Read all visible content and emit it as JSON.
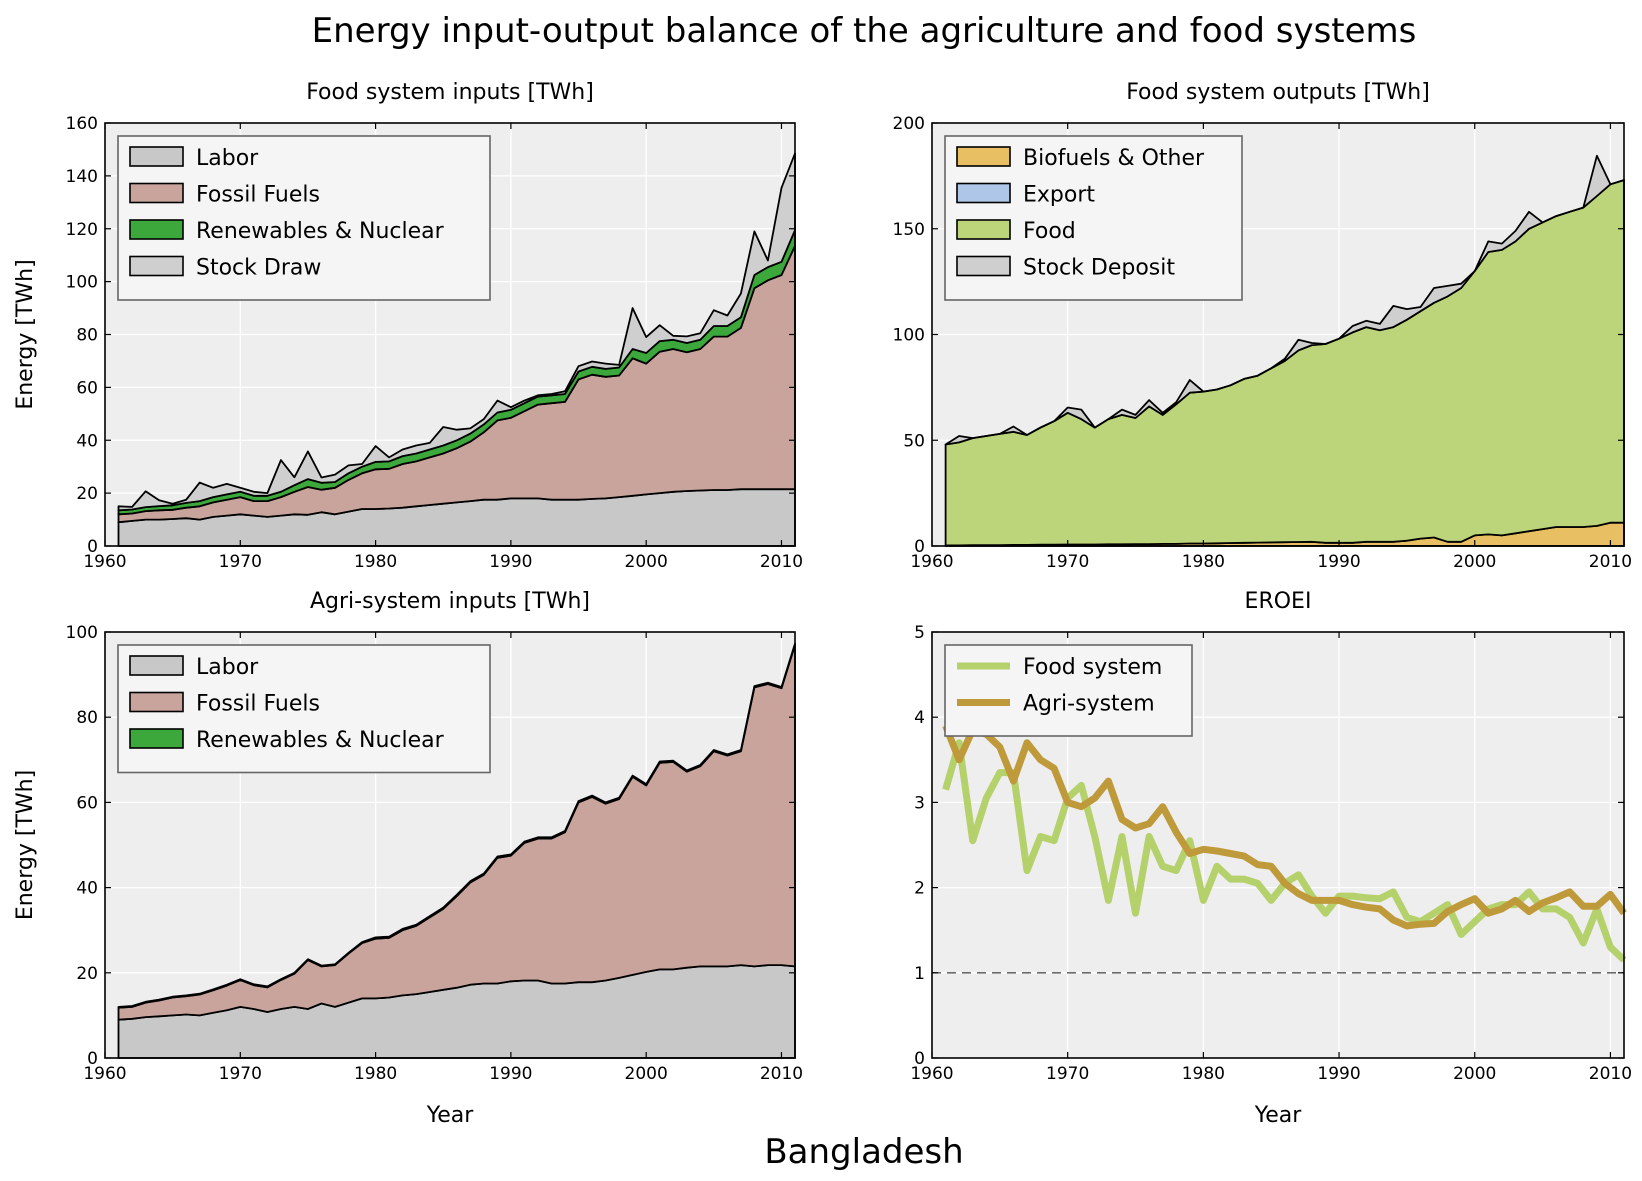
{
  "figure": {
    "title": "Energy input-output balance of the agriculture and food systems",
    "footer": "Bangladesh"
  },
  "colors": {
    "labor": "#c8c8c8",
    "fossil": "#c8a49c",
    "renew": "#3ca83c",
    "stock": "#cfcfcf",
    "biofuel": "#e8bf62",
    "export": "#aec7e8",
    "food": "#bcd47a",
    "eroei_food": "#b5d16b",
    "eroei_agri": "#bf9a3a",
    "bg": "#eeeeee"
  },
  "chart_data": [
    {
      "id": "food-inputs",
      "type": "area",
      "title": "Food system inputs [TWh]",
      "ylabel": "Energy [TWh]",
      "xlabel": "",
      "xlim": [
        1960,
        2011
      ],
      "ylim": [
        0,
        160
      ],
      "xticks": [
        1960,
        1970,
        1980,
        1990,
        2000,
        2010
      ],
      "yticks": [
        0,
        20,
        40,
        60,
        80,
        100,
        120,
        140,
        160
      ],
      "legend": "top-left",
      "grid": true,
      "x": [
        1961,
        1962,
        1963,
        1964,
        1965,
        1966,
        1967,
        1968,
        1969,
        1970,
        1971,
        1972,
        1973,
        1974,
        1975,
        1976,
        1977,
        1978,
        1979,
        1980,
        1981,
        1982,
        1983,
        1984,
        1985,
        1986,
        1987,
        1988,
        1989,
        1990,
        1991,
        1992,
        1993,
        1994,
        1995,
        1996,
        1997,
        1998,
        1999,
        2000,
        2001,
        2002,
        2003,
        2004,
        2005,
        2006,
        2007,
        2008,
        2009,
        2010,
        2011
      ],
      "series": [
        {
          "name": "Labor",
          "color": "labor",
          "values": [
            9,
            9.5,
            10,
            10,
            10.2,
            10.5,
            10,
            11,
            11.5,
            12,
            11.5,
            11,
            11.5,
            12,
            11.8,
            12.8,
            12,
            13,
            14,
            14,
            14.2,
            14.5,
            15,
            15.5,
            16,
            16.5,
            17,
            17.5,
            17.5,
            18,
            18,
            18,
            17.5,
            17.5,
            17.5,
            17.8,
            18,
            18.5,
            19,
            19.5,
            20,
            20.5,
            20.8,
            21,
            21.2,
            21.2,
            21.5,
            21.5,
            21.5,
            21.5,
            21.5
          ]
        },
        {
          "name": "Fossil Fuels",
          "color": "fossil",
          "values": [
            3,
            2.8,
            3.2,
            3.5,
            3.5,
            4,
            5,
            5.5,
            6,
            6.5,
            5.5,
            6,
            7,
            8.5,
            10.5,
            8.5,
            10,
            12,
            13.5,
            15,
            15,
            16.5,
            17,
            18,
            19,
            20.5,
            22.5,
            25.5,
            30,
            30.5,
            33,
            35.5,
            36.5,
            37,
            45.5,
            47,
            46,
            46,
            52,
            49.5,
            53.5,
            54,
            52.5,
            53.5,
            58,
            58,
            61,
            76,
            79,
            81,
            92
          ]
        },
        {
          "name": "Renewables & Nuclear",
          "color": "renew",
          "values": [
            1.5,
            1.5,
            1.5,
            1.6,
            1.7,
            1.8,
            2,
            2,
            2,
            2,
            2,
            2,
            2,
            2.5,
            3,
            2.6,
            2.2,
            2.5,
            2.5,
            2.8,
            2.8,
            3,
            3,
            3,
            3,
            3,
            3,
            3,
            3,
            3,
            3,
            3,
            3,
            3,
            3,
            3,
            3,
            3,
            3.5,
            4,
            4,
            3.5,
            3.5,
            3.5,
            4,
            4,
            4,
            5,
            5,
            5,
            6
          ]
        },
        {
          "name": "Stock Draw",
          "color": "stock",
          "values": [
            1.5,
            1,
            6,
            2.2,
            0.6,
            1.2,
            7,
            3.5,
            4,
            1.5,
            1.5,
            1,
            12,
            3,
            10.5,
            2,
            2.8,
            3,
            1,
            6,
            1.5,
            2.5,
            3,
            2.5,
            7,
            4,
            2,
            2,
            4.5,
            1,
            1,
            0.5,
            0.5,
            1,
            2,
            2,
            2,
            1,
            15.5,
            6,
            6,
            1.5,
            2.5,
            2.5,
            6,
            4,
            9,
            16.5,
            2.5,
            28,
            29
          ]
        }
      ]
    },
    {
      "id": "food-outputs",
      "type": "area",
      "title": "Food system outputs [TWh]",
      "ylabel": "",
      "xlabel": "",
      "xlim": [
        1960,
        2011
      ],
      "ylim": [
        0,
        200
      ],
      "xticks": [
        1960,
        1970,
        1980,
        1990,
        2000,
        2010
      ],
      "yticks": [
        0,
        50,
        100,
        150,
        200
      ],
      "legend": "top-left",
      "grid": true,
      "x": [
        1961,
        1962,
        1963,
        1964,
        1965,
        1966,
        1967,
        1968,
        1969,
        1970,
        1971,
        1972,
        1973,
        1974,
        1975,
        1976,
        1977,
        1978,
        1979,
        1980,
        1981,
        1982,
        1983,
        1984,
        1985,
        1986,
        1987,
        1988,
        1989,
        1990,
        1991,
        1992,
        1993,
        1994,
        1995,
        1996,
        1997,
        1998,
        1999,
        2000,
        2001,
        2002,
        2003,
        2004,
        2005,
        2006,
        2007,
        2008,
        2009,
        2010,
        2011
      ],
      "series": [
        {
          "name": "Biofuels & Other",
          "color": "biofuel",
          "values": [
            0.3,
            0.3,
            0.4,
            0.4,
            0.4,
            0.5,
            0.5,
            0.6,
            0.6,
            0.7,
            0.7,
            0.7,
            0.8,
            0.8,
            0.9,
            0.9,
            1,
            1,
            1.2,
            1.2,
            1.3,
            1.4,
            1.5,
            1.6,
            1.7,
            1.8,
            1.9,
            2,
            1.5,
            1.5,
            1.5,
            2,
            2,
            2,
            2.5,
            3.5,
            4,
            2,
            2,
            5,
            5.5,
            5,
            6,
            7,
            8,
            9,
            9,
            9,
            9.5,
            11,
            11
          ]
        },
        {
          "name": "Export",
          "color": "export",
          "values": [
            0,
            0,
            0,
            0,
            0,
            0,
            0,
            0,
            0,
            0,
            0,
            0,
            0,
            0,
            0,
            0,
            0,
            0,
            0,
            0,
            0,
            0,
            0,
            0,
            0,
            0,
            0,
            0,
            0,
            0,
            0,
            0,
            0,
            0,
            0,
            0,
            0,
            0,
            0,
            0,
            0,
            0,
            0,
            0,
            0,
            0,
            0,
            0,
            0,
            0,
            0
          ]
        },
        {
          "name": "Food",
          "color": "food",
          "values": [
            47.7,
            48.7,
            50.6,
            51.6,
            52.6,
            53.5,
            52,
            55.4,
            58.4,
            62.3,
            59.3,
            55.3,
            59.2,
            61.2,
            59.6,
            65.1,
            61,
            66,
            71.3,
            71.8,
            72.7,
            74.6,
            77.5,
            78.9,
            82.3,
            85.7,
            90.6,
            93,
            94,
            96.5,
            99.5,
            101.5,
            100,
            101.5,
            104.5,
            107.5,
            111,
            116,
            120,
            125,
            133.5,
            135,
            138,
            143,
            145,
            147,
            149,
            151,
            156,
            160,
            162
          ]
        },
        {
          "name": "Stock Deposit",
          "color": "stock",
          "values": [
            0,
            3,
            0,
            0,
            0,
            2.5,
            0,
            0,
            0,
            2.5,
            4.5,
            0,
            0,
            2.5,
            1.5,
            3,
            1,
            1,
            6,
            0,
            0,
            0,
            0,
            0,
            0,
            1,
            5,
            1,
            0,
            0,
            3,
            3,
            3,
            10,
            5,
            2,
            7,
            5,
            2,
            0,
            5,
            3,
            5,
            8,
            0,
            0,
            0,
            0,
            19,
            0,
            0
          ]
        }
      ]
    },
    {
      "id": "agri-inputs",
      "type": "area",
      "title": "Agri-system inputs [TWh]",
      "ylabel": "Energy [TWh]",
      "xlabel": "Year",
      "xlim": [
        1960,
        2011
      ],
      "ylim": [
        0,
        100
      ],
      "xticks": [
        1960,
        1970,
        1980,
        1990,
        2000,
        2010
      ],
      "yticks": [
        0,
        20,
        40,
        60,
        80,
        100
      ],
      "legend": "top-left",
      "grid": true,
      "x": [
        1961,
        1962,
        1963,
        1964,
        1965,
        1966,
        1967,
        1968,
        1969,
        1970,
        1971,
        1972,
        1973,
        1974,
        1975,
        1976,
        1977,
        1978,
        1979,
        1980,
        1981,
        1982,
        1983,
        1984,
        1985,
        1986,
        1987,
        1988,
        1989,
        1990,
        1991,
        1992,
        1993,
        1994,
        1995,
        1996,
        1997,
        1998,
        1999,
        2000,
        2001,
        2002,
        2003,
        2004,
        2005,
        2006,
        2007,
        2008,
        2009,
        2010,
        2011
      ],
      "series": [
        {
          "name": "Labor",
          "color": "labor",
          "values": [
            9,
            9.2,
            9.6,
            9.8,
            10,
            10.2,
            10,
            10.6,
            11.2,
            12,
            11.5,
            10.8,
            11.5,
            12,
            11.5,
            12.8,
            12,
            13,
            14,
            14,
            14.2,
            14.7,
            15,
            15.5,
            16,
            16.5,
            17.2,
            17.5,
            17.5,
            18,
            18.2,
            18.2,
            17.5,
            17.5,
            17.8,
            17.8,
            18.2,
            18.8,
            19.5,
            20.2,
            20.8,
            20.8,
            21.2,
            21.5,
            21.5,
            21.5,
            21.8,
            21.5,
            21.8,
            21.8,
            21.5
          ]
        },
        {
          "name": "Fossil Fuels",
          "color": "fossil",
          "values": [
            2.8,
            2.8,
            3.4,
            3.7,
            4.2,
            4.3,
            4.9,
            5.3,
            5.8,
            6.3,
            5.6,
            5.8,
            6.8,
            7.8,
            11.5,
            8.7,
            9.8,
            11.5,
            13,
            14,
            14,
            15.3,
            16,
            17.5,
            19,
            21.5,
            24,
            25.5,
            29.5,
            29.5,
            32.3,
            33.3,
            34,
            35.5,
            42.2,
            43.5,
            41.5,
            42,
            46.5,
            43.8,
            48.5,
            48.7,
            46,
            47,
            50.5,
            49.5,
            50.2,
            65.5,
            66,
            65,
            75.5
          ]
        },
        {
          "name": "Renewables & Nuclear",
          "color": "renew",
          "values": [
            0.2,
            0.2,
            0.2,
            0.2,
            0.2,
            0.2,
            0.2,
            0.2,
            0.2,
            0.2,
            0.2,
            0.2,
            0.2,
            0.2,
            0.2,
            0.2,
            0.2,
            0.2,
            0.2,
            0.3,
            0.3,
            0.3,
            0.3,
            0.3,
            0.3,
            0.3,
            0.3,
            0.3,
            0.3,
            0.3,
            0.3,
            0.3,
            0.3,
            0.3,
            0.3,
            0.3,
            0.3,
            0.3,
            0.3,
            0.3,
            0.3,
            0.3,
            0.3,
            0.3,
            0.3,
            0.3,
            0.3,
            0.3,
            0.3,
            0.3,
            0.3
          ]
        }
      ]
    },
    {
      "id": "eroei",
      "type": "line",
      "title": "EROEI",
      "ylabel": "",
      "xlabel": "Year",
      "xlim": [
        1960,
        2011
      ],
      "ylim": [
        0,
        5
      ],
      "xticks": [
        1960,
        1970,
        1980,
        1990,
        2000,
        2010
      ],
      "yticks": [
        0,
        1,
        2,
        3,
        4,
        5
      ],
      "legend": "top-left",
      "grid": true,
      "reference_line": 1,
      "x": [
        1961,
        1962,
        1963,
        1964,
        1965,
        1966,
        1967,
        1968,
        1969,
        1970,
        1971,
        1972,
        1973,
        1974,
        1975,
        1976,
        1977,
        1978,
        1979,
        1980,
        1981,
        1982,
        1983,
        1984,
        1985,
        1986,
        1987,
        1988,
        1989,
        1990,
        1991,
        1992,
        1993,
        1994,
        1995,
        1996,
        1997,
        1998,
        1999,
        2000,
        2001,
        2002,
        2003,
        2004,
        2005,
        2006,
        2007,
        2008,
        2009,
        2010,
        2011
      ],
      "series": [
        {
          "name": "Food system",
          "color": "eroei_food",
          "values": [
            3.15,
            3.7,
            2.55,
            3.05,
            3.35,
            3.35,
            2.2,
            2.6,
            2.55,
            3.05,
            3.2,
            2.6,
            1.85,
            2.6,
            1.7,
            2.6,
            2.25,
            2.2,
            2.55,
            1.85,
            2.25,
            2.1,
            2.1,
            2.05,
            1.85,
            2.05,
            2.15,
            1.9,
            1.7,
            1.9,
            1.9,
            1.88,
            1.87,
            1.95,
            1.65,
            1.6,
            1.7,
            1.8,
            1.45,
            1.6,
            1.75,
            1.8,
            1.8,
            1.95,
            1.75,
            1.75,
            1.65,
            1.35,
            1.75,
            1.3,
            1.15
          ]
        },
        {
          "name": "Agri-system",
          "color": "eroei_agri",
          "values": [
            3.9,
            3.5,
            3.85,
            3.8,
            3.65,
            3.25,
            3.7,
            3.5,
            3.4,
            3.0,
            2.95,
            3.05,
            3.25,
            2.8,
            2.7,
            2.75,
            2.95,
            2.65,
            2.4,
            2.45,
            2.43,
            2.4,
            2.37,
            2.27,
            2.25,
            2.05,
            1.93,
            1.85,
            1.85,
            1.85,
            1.8,
            1.77,
            1.75,
            1.62,
            1.55,
            1.57,
            1.58,
            1.72,
            1.8,
            1.87,
            1.7,
            1.75,
            1.85,
            1.72,
            1.82,
            1.88,
            1.95,
            1.78,
            1.78,
            1.92,
            1.7
          ]
        }
      ]
    }
  ]
}
